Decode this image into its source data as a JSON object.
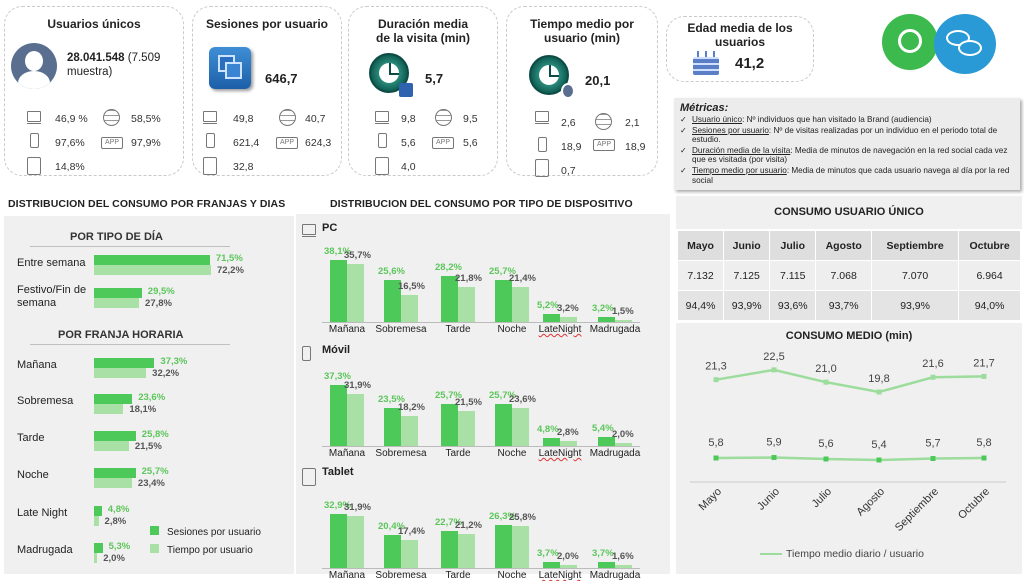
{
  "colors": {
    "dark_green": "#4dc95a",
    "light_green": "#a8e0a6",
    "line_green": "#9cdc9c"
  },
  "kpis": {
    "unique_users": {
      "title": "Usuarios únicos",
      "value": "28.041.548",
      "note": "(7.509 muestra)",
      "pc": "46,9 %",
      "web": "58,5%",
      "mobile": "97,6%",
      "app": "97,9%",
      "tablet": "14,8%"
    },
    "sessions": {
      "title": "Sesiones por usuario",
      "value": "646,7",
      "pc": "49,8",
      "web": "40,7",
      "mobile": "621,4",
      "app": "624,3",
      "tablet": "32,8"
    },
    "duration": {
      "title": "Duración media de la visita (min)",
      "value": "5,7",
      "pc": "9,8",
      "web": "9,5",
      "mobile": "5,6",
      "app": "5,6",
      "tablet": "4,0"
    },
    "time_per_user": {
      "title": "Tiempo medio por usuario (min)",
      "value": "20,1",
      "pc": "2,6",
      "web": "2,1",
      "mobile": "18,9",
      "app": "18,9",
      "tablet": "0,7"
    },
    "age": {
      "title": "Edad media de los usuarios",
      "value": "41,2"
    }
  },
  "app_label": "APP",
  "metrics_box": {
    "title": "Métricas:",
    "items": [
      {
        "term": "Usuario único",
        "text": ": Nº individuos que han visitado la Brand (audiencia)"
      },
      {
        "term": "Sesiones por usuario",
        "text": ": Nº de visitas realizadas por un individuo en el periodo total de estudio."
      },
      {
        "term": "Duración media de la visita",
        "text": ": Media de minutos de navegación en la red social cada vez que es visitada (por visita)"
      },
      {
        "term": "Tiempo medio por usuario",
        "text": ": Media de minutos que cada usuario navega al día por la red social"
      }
    ]
  },
  "left_section": {
    "title": "DISTRIBUCION DEL CONSUMO POR FRANJAS Y DIAS",
    "day_title": "POR TIPO DE DÍA",
    "slot_title": "POR FRANJA HORARIA",
    "legend": {
      "sessions": "Sesiones por usuario",
      "time": "Tiempo por usuario"
    }
  },
  "mid_section": {
    "title": "DISTRIBUCION DEL CONSUMO POR TIPO DE DISPOSITIVO",
    "devices": [
      "PC",
      "Móvil",
      "Tablet"
    ]
  },
  "right_section": {
    "table_title": "CONSUMO USUARIO ÚNICO",
    "line_title": "CONSUMO MEDIO (min)",
    "legend": "Tiempo medio diario / usuario",
    "months": [
      "Mayo",
      "Junio",
      "Julio",
      "Agosto",
      "Septiembre",
      "Octubre"
    ],
    "row1": [
      "7.132",
      "7.125",
      "7.115",
      "7.068",
      "7.070",
      "6.964"
    ],
    "row2": [
      "94,4%",
      "93,9%",
      "93,6%",
      "93,7%",
      "93,9%",
      "94,0%"
    ]
  },
  "chart_data": [
    {
      "type": "bar",
      "orientation": "horizontal",
      "title": "POR TIPO DE DÍA",
      "categories": [
        "Entre semana",
        "Festivo/Fin de semana"
      ],
      "series": [
        {
          "name": "Sesiones por usuario",
          "values": [
            71.5,
            29.5
          ],
          "labels": [
            "71,5%",
            "29,5%"
          ]
        },
        {
          "name": "Tiempo por usuario",
          "values": [
            72.2,
            27.8
          ],
          "labels": [
            "72,2%",
            "27,8%"
          ]
        }
      ]
    },
    {
      "type": "bar",
      "orientation": "horizontal",
      "title": "POR FRANJA HORARIA",
      "categories": [
        "Mañana",
        "Sobremesa",
        "Tarde",
        "Noche",
        "Late Night",
        "Madrugada"
      ],
      "series": [
        {
          "name": "Sesiones por usuario",
          "values": [
            37.3,
            23.6,
            25.8,
            25.7,
            4.8,
            5.3
          ],
          "labels": [
            "37,3%",
            "23,6%",
            "25,8%",
            "25,7%",
            "4,8%",
            "5,3%"
          ]
        },
        {
          "name": "Tiempo por usuario",
          "values": [
            32.2,
            18.1,
            21.5,
            23.4,
            2.8,
            2.0
          ],
          "labels": [
            "32,2%",
            "18,1%",
            "21,5%",
            "23,4%",
            "2,8%",
            "2,0%"
          ]
        }
      ]
    },
    {
      "type": "bar",
      "title": "PC",
      "categories": [
        "Mañana",
        "Sobremesa",
        "Tarde",
        "Noche",
        "LateNight",
        "Madrugada"
      ],
      "series": [
        {
          "name": "Sesiones por usuario",
          "values": [
            38.1,
            25.6,
            28.2,
            25.7,
            5.2,
            3.2
          ],
          "labels": [
            "38,1%",
            "25,6%",
            "28,2%",
            "25,7%",
            "5,2%",
            "3,2%"
          ]
        },
        {
          "name": "Tiempo por usuario",
          "values": [
            35.7,
            16.5,
            21.8,
            21.4,
            3.2,
            1.5
          ],
          "labels": [
            "35,7%",
            "16,5%",
            "21,8%",
            "21,4%",
            "3,2%",
            "1,5%"
          ]
        }
      ]
    },
    {
      "type": "bar",
      "title": "Móvil",
      "categories": [
        "Mañana",
        "Sobremesa",
        "Tarde",
        "Noche",
        "LateNight",
        "Madrugada"
      ],
      "series": [
        {
          "name": "Sesiones por usuario",
          "values": [
            37.3,
            23.5,
            25.7,
            25.7,
            4.8,
            5.4
          ],
          "labels": [
            "37,3%",
            "23,5%",
            "25,7%",
            "25,7%",
            "4,8%",
            "5,4%"
          ]
        },
        {
          "name": "Tiempo por usuario",
          "values": [
            31.9,
            18.2,
            21.5,
            23.6,
            2.8,
            2.0
          ],
          "labels": [
            "31,9%",
            "18,2%",
            "21,5%",
            "23,6%",
            "2,8%",
            "2,0%"
          ]
        }
      ]
    },
    {
      "type": "bar",
      "title": "Tablet",
      "categories": [
        "Mañana",
        "Sobremesa",
        "Tarde",
        "Noche",
        "LateNight",
        "Madrugada"
      ],
      "series": [
        {
          "name": "Sesiones por usuario",
          "values": [
            32.9,
            20.4,
            22.7,
            26.3,
            3.7,
            3.7
          ],
          "labels": [
            "32,9%",
            "20,4%",
            "22,7%",
            "26,3%",
            "3,7%",
            "3,7%"
          ]
        },
        {
          "name": "Tiempo por usuario",
          "values": [
            31.9,
            17.4,
            21.2,
            25.8,
            2.0,
            1.6
          ],
          "labels": [
            "31,9%",
            "17,4%",
            "21,2%",
            "25,8%",
            "2,0%",
            "1,6%"
          ]
        }
      ]
    },
    {
      "type": "line",
      "title": "CONSUMO MEDIO (min)",
      "categories": [
        "Mayo",
        "Junio",
        "Julio",
        "Agosto",
        "Septiembre",
        "Octubre"
      ],
      "series": [
        {
          "values": [
            21.3,
            22.5,
            21.0,
            19.8,
            21.6,
            21.7
          ],
          "labels": [
            "21,3",
            "22,5",
            "21,0",
            "19,8",
            "21,6",
            "21,7"
          ]
        },
        {
          "name": "Tiempo medio diario / usuario",
          "values": [
            5.8,
            5.9,
            5.6,
            5.4,
            5.7,
            5.8
          ],
          "labels": [
            "5,8",
            "5,9",
            "5,6",
            "5,4",
            "5,7",
            "5,8"
          ]
        }
      ]
    }
  ]
}
